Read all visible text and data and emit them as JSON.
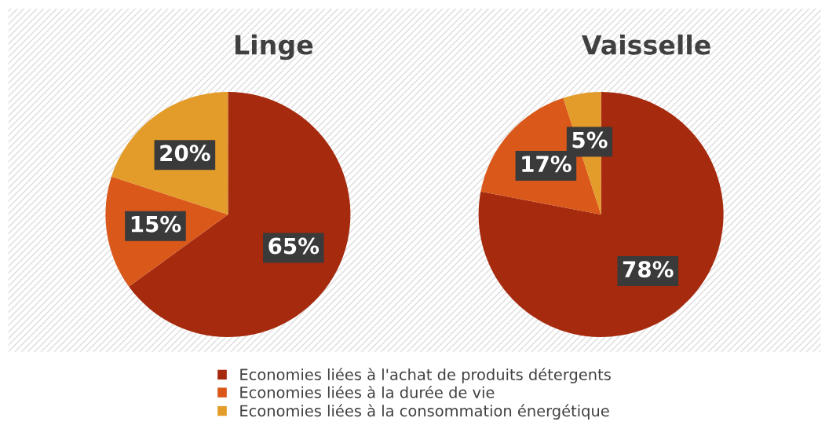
{
  "chart_data": [
    {
      "type": "pie",
      "title": "Linge",
      "categories": [
        "Economies liées à l'achat de produits détergents",
        "Economies liées à la durée de vie",
        "Economies liées à la consommation énergétique"
      ],
      "values": [
        65,
        15,
        20
      ],
      "colors": [
        "#a52a0e",
        "#d9581a",
        "#e39b2a"
      ],
      "value_labels": [
        "65%",
        "15%",
        "20%"
      ],
      "legend": "bottom"
    },
    {
      "type": "pie",
      "title": "Vaisselle",
      "categories": [
        null,
        null,
        null
      ],
      "values": [
        78,
        17,
        5
      ],
      "colors": [
        "#a52a0e",
        "#d9581a",
        "#e39b2a"
      ],
      "value_labels": [
        "78%",
        "17%",
        "5%"
      ]
    }
  ]
}
